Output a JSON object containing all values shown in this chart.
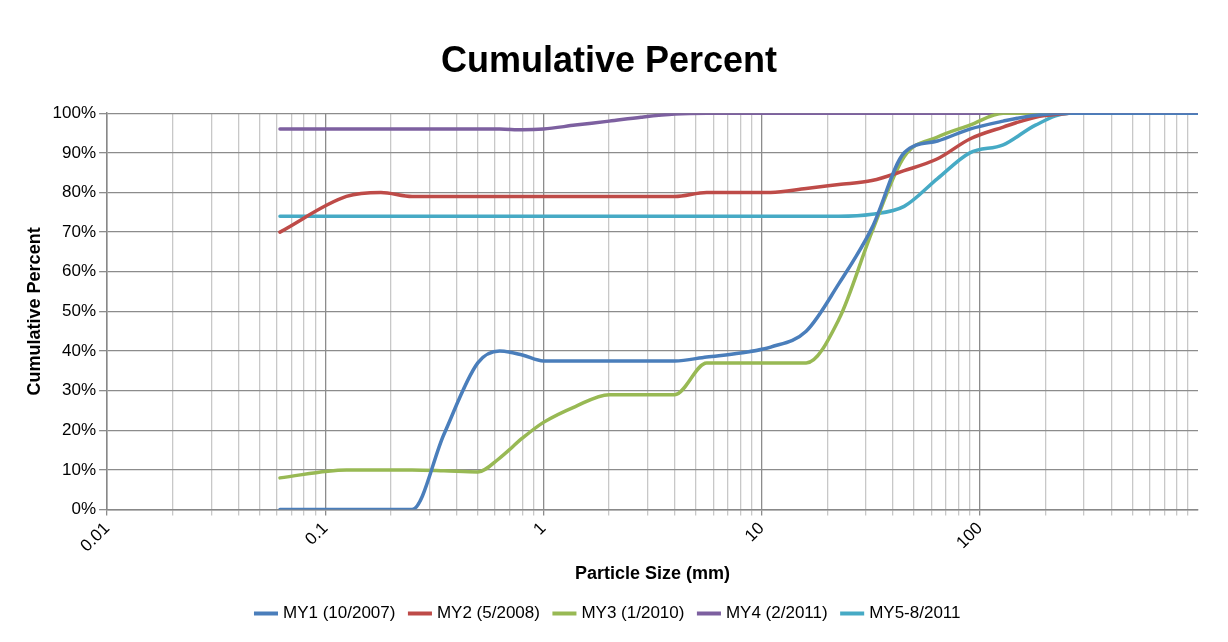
{
  "chart_data": {
    "type": "line",
    "title": "Cumulative Percent",
    "xlabel": "Particle Size (mm)",
    "ylabel": "Cumulative Percent",
    "log": "x",
    "grid": true,
    "legend": "bottom",
    "marker": "none",
    "line_style": "solid",
    "xlim": [
      0.01,
      1000
    ],
    "xticks": [
      0.01,
      {
        "value": 0.02,
        "label": null
      },
      {
        "value": 0.03,
        "label": null
      },
      {
        "value": 0.04,
        "label": null
      },
      {
        "value": 0.05,
        "label": null
      },
      {
        "value": 0.06,
        "label": null
      },
      {
        "value": 0.07,
        "label": null
      },
      {
        "value": 0.08,
        "label": null
      },
      {
        "value": 0.09,
        "label": null
      },
      0.1,
      {
        "value": 0.2,
        "label": null
      },
      {
        "value": 0.3,
        "label": null
      },
      {
        "value": 0.4,
        "label": null
      },
      {
        "value": 0.5,
        "label": null
      },
      {
        "value": 0.6,
        "label": null
      },
      {
        "value": 0.7,
        "label": null
      },
      {
        "value": 0.8,
        "label": null
      },
      {
        "value": 0.9,
        "label": null
      },
      1,
      {
        "value": 2,
        "label": null
      },
      {
        "value": 3,
        "label": null
      },
      {
        "value": 4,
        "label": null
      },
      {
        "value": 5,
        "label": null
      },
      {
        "value": 6,
        "label": null
      },
      {
        "value": 7,
        "label": null
      },
      {
        "value": 8,
        "label": null
      },
      {
        "value": 9,
        "label": null
      },
      10,
      {
        "value": 20,
        "label": null
      },
      {
        "value": 30,
        "label": null
      },
      {
        "value": 40,
        "label": null
      },
      {
        "value": 50,
        "label": null
      },
      {
        "value": 60,
        "label": null
      },
      {
        "value": 70,
        "label": null
      },
      {
        "value": 80,
        "label": null
      },
      {
        "value": 90,
        "label": null
      },
      100,
      {
        "value": 200,
        "label": null
      },
      {
        "value": 300,
        "label": null
      },
      {
        "value": 400,
        "label": null
      },
      {
        "value": 500,
        "label": null
      },
      {
        "value": 600,
        "label": null
      },
      {
        "value": 700,
        "label": null
      },
      {
        "value": 800,
        "label": null
      },
      {
        "value": 900,
        "label": null
      }
    ],
    "ylim": [
      0,
      100
    ],
    "yticks": [
      {
        "value": 0,
        "label": "0%"
      },
      {
        "value": 10,
        "label": "10%"
      },
      {
        "value": 20,
        "label": "20%"
      },
      {
        "value": 30,
        "label": "30%"
      },
      {
        "value": 40,
        "label": "40%"
      },
      {
        "value": 50,
        "label": "50%"
      },
      {
        "value": 60,
        "label": "60%"
      },
      {
        "value": 70,
        "label": "70%"
      },
      {
        "value": 80,
        "label": "80%"
      },
      {
        "value": 90,
        "label": "90%"
      },
      {
        "value": 100,
        "label": "100%"
      }
    ],
    "x": [
      0.062,
      0.125,
      0.18,
      0.25,
      0.35,
      0.5,
      0.63,
      0.8,
      1,
      1.4,
      2,
      2.8,
      4,
      5.6,
      8,
      11,
      16,
      22.6,
      32,
      45,
      64,
      90,
      128,
      180,
      256,
      362,
      512,
      1000
    ],
    "series": [
      {
        "name": "MY1 (10/2007)",
        "color": "#4a7ebb",
        "values": [
          0,
          0,
          0,
          0,
          19,
          37,
          40,
          39,
          37.5,
          37.5,
          37.5,
          37.5,
          37.5,
          38.5,
          39.5,
          41,
          45,
          57,
          71,
          90,
          93,
          96,
          98,
          99.5,
          100,
          100,
          100,
          100
        ]
      },
      {
        "name": "MY2 (5/2008)",
        "color": "#be4b48",
        "values": [
          70,
          79,
          80,
          79,
          79,
          79,
          79,
          79,
          79,
          79,
          79,
          79,
          79,
          80,
          80,
          80,
          81,
          82,
          83,
          85.5,
          88.5,
          93.5,
          96.5,
          99,
          100,
          null,
          null,
          null
        ]
      },
      {
        "name": "MY3 (1/2010)",
        "color": "#98b954",
        "values": [
          8,
          10,
          10,
          10,
          9.8,
          9.5,
          13,
          18,
          22,
          26,
          29,
          29,
          29,
          37,
          37,
          37,
          37,
          48,
          70,
          89,
          94,
          97,
          100,
          100,
          100,
          null,
          null,
          null
        ]
      },
      {
        "name": "MY4 (2/2011)",
        "color": "#7d60a0",
        "values": [
          96,
          96,
          96,
          96,
          96,
          96,
          96,
          95.8,
          96,
          97,
          98,
          99,
          99.8,
          100,
          100,
          100,
          100,
          100,
          100,
          100,
          100,
          100,
          100,
          100,
          100,
          100,
          100,
          100
        ]
      },
      {
        "name": "MY5-8/2011",
        "color": "#46aac5",
        "values": [
          74,
          74,
          74,
          74,
          74,
          74,
          74,
          74,
          74,
          74,
          74,
          74,
          74,
          74,
          74,
          74,
          74,
          74,
          74.5,
          76.5,
          83.5,
          90,
          92,
          97,
          100,
          100,
          null,
          null
        ]
      }
    ]
  }
}
